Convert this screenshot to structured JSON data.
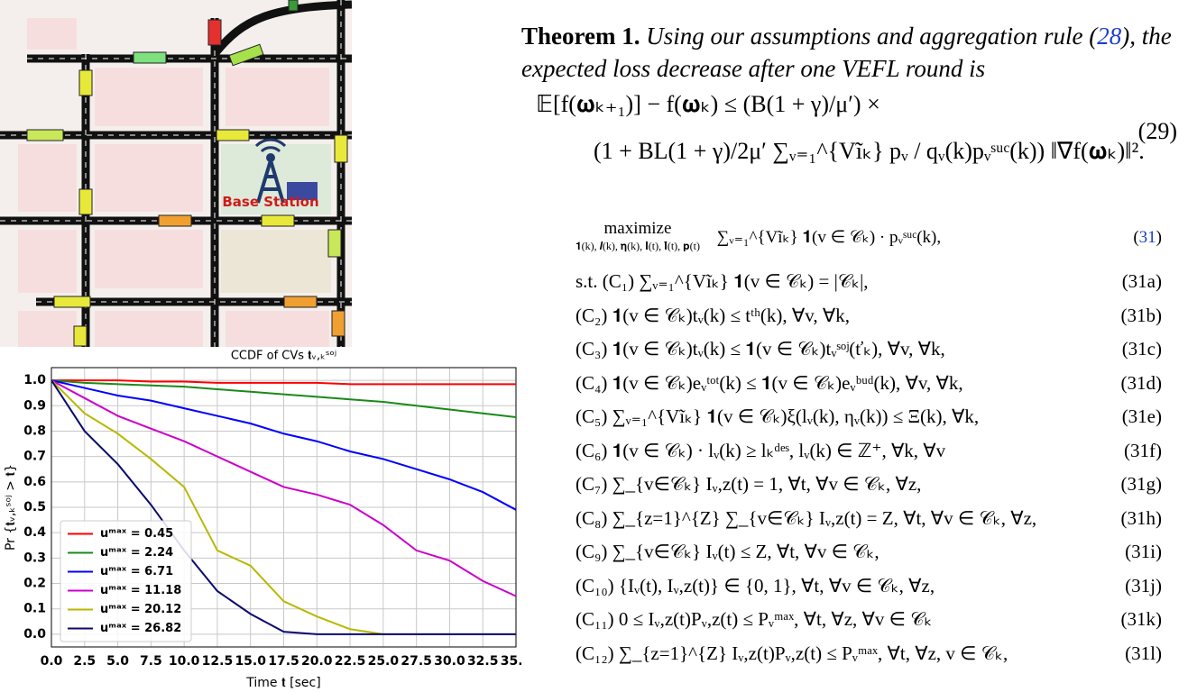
{
  "map": {
    "label": "Base Station"
  },
  "chart_data": {
    "type": "line",
    "title": "CCDF of CVs 𝐭ᵥ,ₖˢᵒʲ",
    "x_label": "Time 𝐭 [sec]",
    "y_label": "Pr {𝐭ᵥ,ₖˢᵒʲ > 𝐭}",
    "x": [
      0,
      2.5,
      5,
      7.5,
      10,
      12.5,
      15,
      17.5,
      20,
      22.5,
      25,
      27.5,
      30,
      32.5,
      35
    ],
    "series": [
      {
        "name": "uᵐᵃˣ = 0.45",
        "color": "#ff0000",
        "values": [
          1.0,
          1.0,
          1.0,
          0.995,
          0.995,
          0.99,
          0.99,
          0.99,
          0.99,
          0.985,
          0.985,
          0.985,
          0.985,
          0.985,
          0.985
        ]
      },
      {
        "name": "uᵐᵃˣ = 2.24",
        "color": "#1a8a1a",
        "values": [
          1.0,
          0.99,
          0.985,
          0.98,
          0.975,
          0.965,
          0.955,
          0.945,
          0.935,
          0.925,
          0.915,
          0.9,
          0.885,
          0.87,
          0.855
        ]
      },
      {
        "name": "uᵐᵃˣ = 6.71",
        "color": "#0000ff",
        "values": [
          1.0,
          0.97,
          0.94,
          0.92,
          0.89,
          0.86,
          0.83,
          0.79,
          0.76,
          0.72,
          0.69,
          0.65,
          0.61,
          0.56,
          0.49
        ]
      },
      {
        "name": "uᵐᵃˣ = 11.18",
        "color": "#cc00cc",
        "values": [
          1.0,
          0.93,
          0.86,
          0.81,
          0.76,
          0.7,
          0.64,
          0.58,
          0.55,
          0.51,
          0.43,
          0.33,
          0.29,
          0.21,
          0.15
        ]
      },
      {
        "name": "uᵐᵃˣ = 20.12",
        "color": "#b8b800",
        "values": [
          1.0,
          0.87,
          0.79,
          0.69,
          0.58,
          0.33,
          0.27,
          0.13,
          0.07,
          0.02,
          0.0,
          0.0,
          0.0,
          0.0,
          0.0
        ]
      },
      {
        "name": "uᵐᵃˣ = 26.82",
        "color": "#0a0a6e",
        "values": [
          1.0,
          0.8,
          0.67,
          0.51,
          0.33,
          0.17,
          0.08,
          0.01,
          0.0,
          0.0,
          0.0,
          0.0,
          0.0,
          0.0,
          0.0
        ]
      }
    ],
    "xlim": [
      0,
      35
    ],
    "ylim": [
      -0.05,
      1.05
    ],
    "xticks": [
      {
        "value": 0,
        "label": "0.0"
      },
      2.5,
      {
        "value": 5,
        "label": "5.0"
      },
      7.5,
      {
        "value": 10,
        "label": "10.0"
      },
      12.5,
      {
        "value": 15,
        "label": "15.0"
      },
      17.5,
      {
        "value": 20,
        "label": "20.0"
      },
      22.5,
      {
        "value": 25,
        "label": "25.0"
      },
      27.5,
      {
        "value": 30,
        "label": "30.0"
      },
      32.5,
      {
        "value": 35,
        "label": "35.0"
      }
    ],
    "yticks": [
      {
        "value": 0,
        "label": "0.0"
      },
      0.1,
      0.2,
      0.3,
      0.4,
      0.5,
      0.6,
      0.7,
      0.8,
      0.9,
      {
        "value": 1,
        "label": "1.0"
      }
    ],
    "grid": true,
    "legend": "lower left"
  },
  "theorem": {
    "label": "Theorem 1.",
    "text_before": "Using our assumptions and aggregation rule (",
    "ref": "28",
    "text_after": "), the expected loss decrease after one VEFL round is",
    "line1": "𝔼[f(𝛚ₖ₊₁)] − f(𝛚ₖ) ≤ (B(1 + γ)/μ′) ×",
    "line2": "(1 + BL(1 + γ)/2μ′ ∑ᵥ₌₁^{Vĩₖ} pᵥ / qᵥ(k)pᵥˢᵘᶜ(k)) ‖∇f(𝛚ₖ)‖².",
    "number": "(29)"
  },
  "problem": {
    "objective": "maximize",
    "variables": "𝟏(k), 𝒍(k), 𝛈(k), 𝐈(t), 𝐈̌(t), 𝐩(t)",
    "expression": "∑ᵥ₌₁^{Vĩₖ} 𝟏(v ∈ 𝒞ₖ) · pᵥˢᵘᶜ(k),",
    "number": "31",
    "rows": [
      {
        "text": "s.t. (C₁)   ∑ᵥ₌₁^{Vĩₖ} 𝟏(v ∈ 𝒞ₖ) = |𝒞ₖ|,",
        "number": "(31a)"
      },
      {
        "text": "(C₂)   𝟏(v ∈ 𝒞ₖ)tᵥ(k) ≤ tᵗʰ(k),  ∀v, ∀k,",
        "number": "(31b)"
      },
      {
        "text": "(C₃)   𝟏(v ∈ 𝒞ₖ)tᵥ(k) ≤ 𝟏(v ∈ 𝒞ₖ)tᵥˢᵒʲ(ťₖ),  ∀v, ∀k,",
        "number": "(31c)"
      },
      {
        "text": "(C₄)   𝟏(v ∈ 𝒞ₖ)eᵥᵗᵒᵗ(k) ≤ 𝟏(v ∈ 𝒞ₖ)eᵥᵇᵘᵈ(k),  ∀v, ∀k,",
        "number": "(31d)"
      },
      {
        "text": "(C₅)   ∑ᵥ₌₁^{Vĩₖ} 𝟏(v ∈ 𝒞ₖ)ξ(lᵥ(k), ηᵥ(k)) ≤ Ξ(k),  ∀k,",
        "number": "(31e)"
      },
      {
        "text": "(C₆)   𝟏(v ∈ 𝒞ₖ) · lᵥ(k) ≥ lₖᵈᵉˢ,  lᵥ(k) ∈ ℤ⁺,  ∀k, ∀v",
        "number": "(31f)"
      },
      {
        "text": "(C₇)   ∑_{v∈𝒞ₖ} Iᵥ,z(t) = 1, ∀t, ∀v ∈ 𝒞ₖ, ∀z,",
        "number": "(31g)"
      },
      {
        "text": "(C₈)   ∑_{z=1}^{Z} ∑_{v∈𝒞ₖ} Iᵥ,z(t) = Z, ∀t, ∀v ∈ 𝒞ₖ, ∀z,",
        "number": "(31h)"
      },
      {
        "text": "(C₉)   ∑_{v∈𝒞ₖ} Iᵥ(t) ≤ Z, ∀t, ∀v ∈ 𝒞ₖ,",
        "number": "(31i)"
      },
      {
        "text": "(C₁₀)   {Iᵥ(t), Iᵥ,z(t)} ∈ {0, 1}, ∀t, ∀v ∈ 𝒞ₖ, ∀z,",
        "number": "(31j)"
      },
      {
        "text": "(C₁₁)   0 ≤ Iᵥ,z(t)Pᵥ,z(t) ≤ Pᵥᵐᵃˣ,   ∀t, ∀z, ∀v ∈ 𝒞ₖ",
        "number": "(31k)"
      },
      {
        "text": "(C₁₂)   ∑_{z=1}^{Z} Iᵥ,z(t)Pᵥ,z(t) ≤ Pᵥᵐᵃˣ,   ∀t, ∀z, v ∈ 𝒞ₖ,",
        "number": "(31l)"
      }
    ]
  }
}
